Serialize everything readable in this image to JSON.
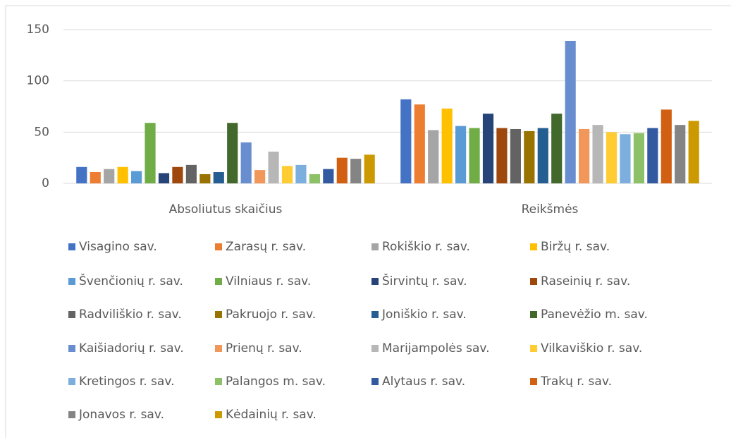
{
  "chart_data": {
    "type": "bar",
    "categories": [
      "Absoliutus skaičius",
      "Reikšmės"
    ],
    "ylim": [
      0,
      150
    ],
    "yticks": [
      0,
      50,
      100,
      150
    ],
    "grid": true,
    "legend": "bottom",
    "series": [
      {
        "name": "Visagino sav.",
        "color": "#4472c4",
        "values": [
          16,
          82
        ]
      },
      {
        "name": "Zarasų r. sav.",
        "color": "#ed7d31",
        "values": [
          11,
          77
        ]
      },
      {
        "name": "Rokiškio r. sav.",
        "color": "#a5a5a5",
        "values": [
          14,
          52
        ]
      },
      {
        "name": "Biržų r. sav.",
        "color": "#ffc000",
        "values": [
          16,
          73
        ]
      },
      {
        "name": "Švenčionių r. sav.",
        "color": "#5b9bd5",
        "values": [
          12,
          56
        ]
      },
      {
        "name": "Vilniaus r. sav.",
        "color": "#70ad47",
        "values": [
          59,
          54
        ]
      },
      {
        "name": "Širvintų r. sav.",
        "color": "#264478",
        "values": [
          10,
          68
        ]
      },
      {
        "name": "Raseinių r. sav.",
        "color": "#9e480e",
        "values": [
          16,
          54
        ]
      },
      {
        "name": "Radviliškio r. sav.",
        "color": "#636363",
        "values": [
          18,
          53
        ]
      },
      {
        "name": "Pakruojo r. sav.",
        "color": "#997300",
        "values": [
          9,
          51
        ]
      },
      {
        "name": "Joniškio r. sav.",
        "color": "#255e91",
        "values": [
          11,
          54
        ]
      },
      {
        "name": "Panevėžio m. sav.",
        "color": "#43682b",
        "values": [
          59,
          68
        ]
      },
      {
        "name": "Kaišiadorių r. sav.",
        "color": "#698ed0",
        "values": [
          40,
          139
        ]
      },
      {
        "name": "Prienų r. sav.",
        "color": "#f1975a",
        "values": [
          13,
          53
        ]
      },
      {
        "name": "Marijampolės sav.",
        "color": "#b7b7b7",
        "values": [
          31,
          57
        ]
      },
      {
        "name": "Vilkaviškio r. sav.",
        "color": "#ffcd33",
        "values": [
          17,
          50
        ]
      },
      {
        "name": "Kretingos r. sav.",
        "color": "#7cafdd",
        "values": [
          18,
          48
        ]
      },
      {
        "name": "Palangos m. sav.",
        "color": "#8cc168",
        "values": [
          9,
          49
        ]
      },
      {
        "name": "Alytaus r. sav.",
        "color": "#335aa1",
        "values": [
          14,
          54
        ]
      },
      {
        "name": "Trakų r. sav.",
        "color": "#d26012",
        "values": [
          25,
          72
        ]
      },
      {
        "name": "Jonavos r. sav.",
        "color": "#848484",
        "values": [
          24,
          57
        ]
      },
      {
        "name": "Kėdainių r. sav.",
        "color": "#cc9a00",
        "values": [
          28,
          61
        ]
      }
    ]
  }
}
